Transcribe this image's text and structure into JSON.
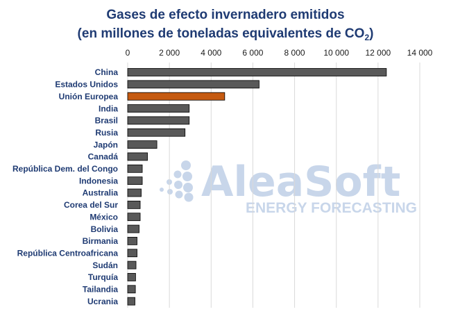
{
  "title": {
    "line1": "Gases de efecto invernadero emitidos",
    "line2_before": "(en millones de toneladas equivalentes de CO",
    "line2_sub": "2",
    "line2_after": ")"
  },
  "watermark": {
    "name": "AleaSoft",
    "tagline": "ENERGY FORECASTING",
    "color": "#c8d6ea"
  },
  "colors": {
    "bar": "#595959",
    "highlight": "#c55a11",
    "bar_border": "#000000",
    "grid": "#d9d9d9",
    "label": "#1f3b73"
  },
  "chart_data": {
    "type": "bar",
    "orientation": "horizontal",
    "categories": [
      "China",
      "Estados Unidos",
      "Unión Europea",
      "India",
      "Brasil",
      "Rusia",
      "Japón",
      "Canadá",
      "República Dem. del Congo",
      "Indonesia",
      "Australia",
      "Corea del Sur",
      "México",
      "Bolivia",
      "Birmania",
      "República Centroafricana",
      "Sudán",
      "Turquía",
      "Tailandia",
      "Ucrania"
    ],
    "values": [
      12400,
      6300,
      4650,
      2950,
      2950,
      2750,
      1400,
      950,
      700,
      700,
      650,
      600,
      600,
      550,
      450,
      450,
      400,
      380,
      370,
      350
    ],
    "highlight": "Unión Europea",
    "xlim": [
      0,
      14000
    ],
    "xticks": [
      0,
      2000,
      4000,
      6000,
      8000,
      10000,
      12000,
      14000
    ],
    "xtick_labels": [
      "0",
      "2 000",
      "4 000",
      "6 000",
      "8 000",
      "10 000",
      "12 000",
      "14 000"
    ],
    "axis_position": "top",
    "grid": true
  }
}
